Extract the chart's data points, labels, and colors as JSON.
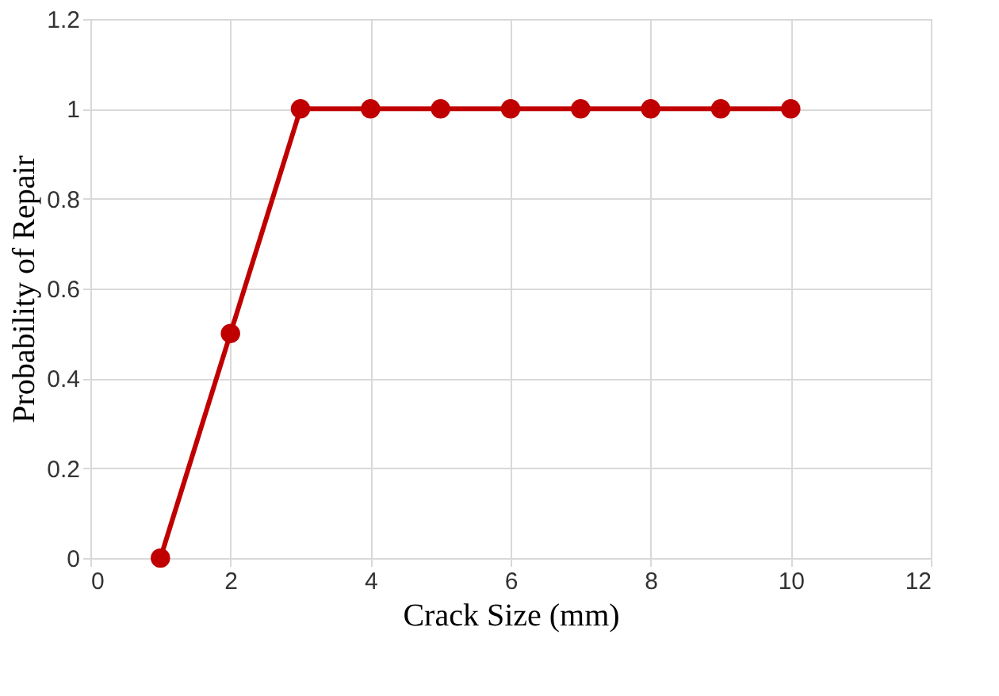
{
  "chart_data": {
    "type": "line",
    "xlabel": "Crack Size (mm)",
    "ylabel": "Probability of Repair",
    "x": [
      1,
      2,
      3,
      4,
      5,
      6,
      7,
      8,
      9,
      10
    ],
    "series": [
      {
        "color": "#c00000",
        "values": [
          0,
          0.5,
          1,
          1,
          1,
          1,
          1,
          1,
          1,
          1
        ]
      }
    ],
    "xlim": [
      0,
      12
    ],
    "xticks": [
      0,
      2,
      4,
      6,
      8,
      10,
      12
    ],
    "ylim": [
      0,
      1.2
    ],
    "yticks": [
      0,
      0.2,
      0.4,
      0.6,
      0.8,
      1,
      1.2
    ],
    "grid": true,
    "marker": "circle",
    "line_style": "solid"
  }
}
